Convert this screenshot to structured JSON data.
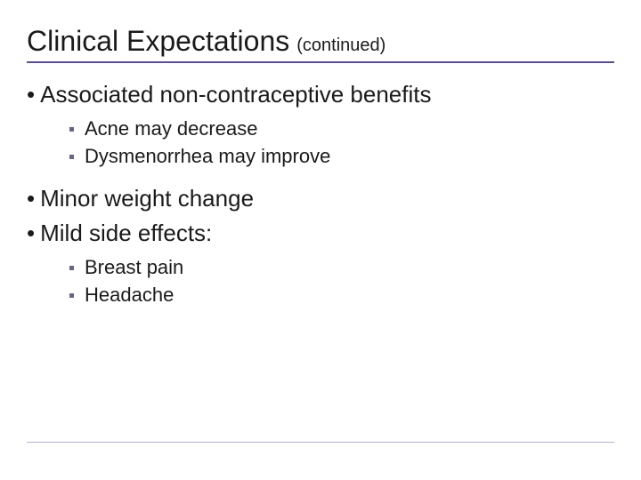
{
  "colors": {
    "title_rule": "#5c4d8c",
    "footer_rule": "#b8b0cc",
    "square_bullet": "#6b6285",
    "text": "#1a1a1a",
    "background": "#ffffff"
  },
  "typography": {
    "title_fontsize": 32,
    "subtitle_fontsize": 20,
    "level1_fontsize": 26,
    "level2_fontsize": 22,
    "font_family": "Arial"
  },
  "title": "Clinical Expectations",
  "subtitle": "(continued)",
  "bullets": [
    {
      "text": "Associated non-contraceptive benefits",
      "sub": [
        "Acne may decrease",
        "Dysmenorrhea may improve"
      ]
    },
    {
      "text": "Minor weight change",
      "sub": []
    },
    {
      "text": "Mild side effects:",
      "sub": [
        "Breast pain",
        "Headache"
      ]
    }
  ]
}
